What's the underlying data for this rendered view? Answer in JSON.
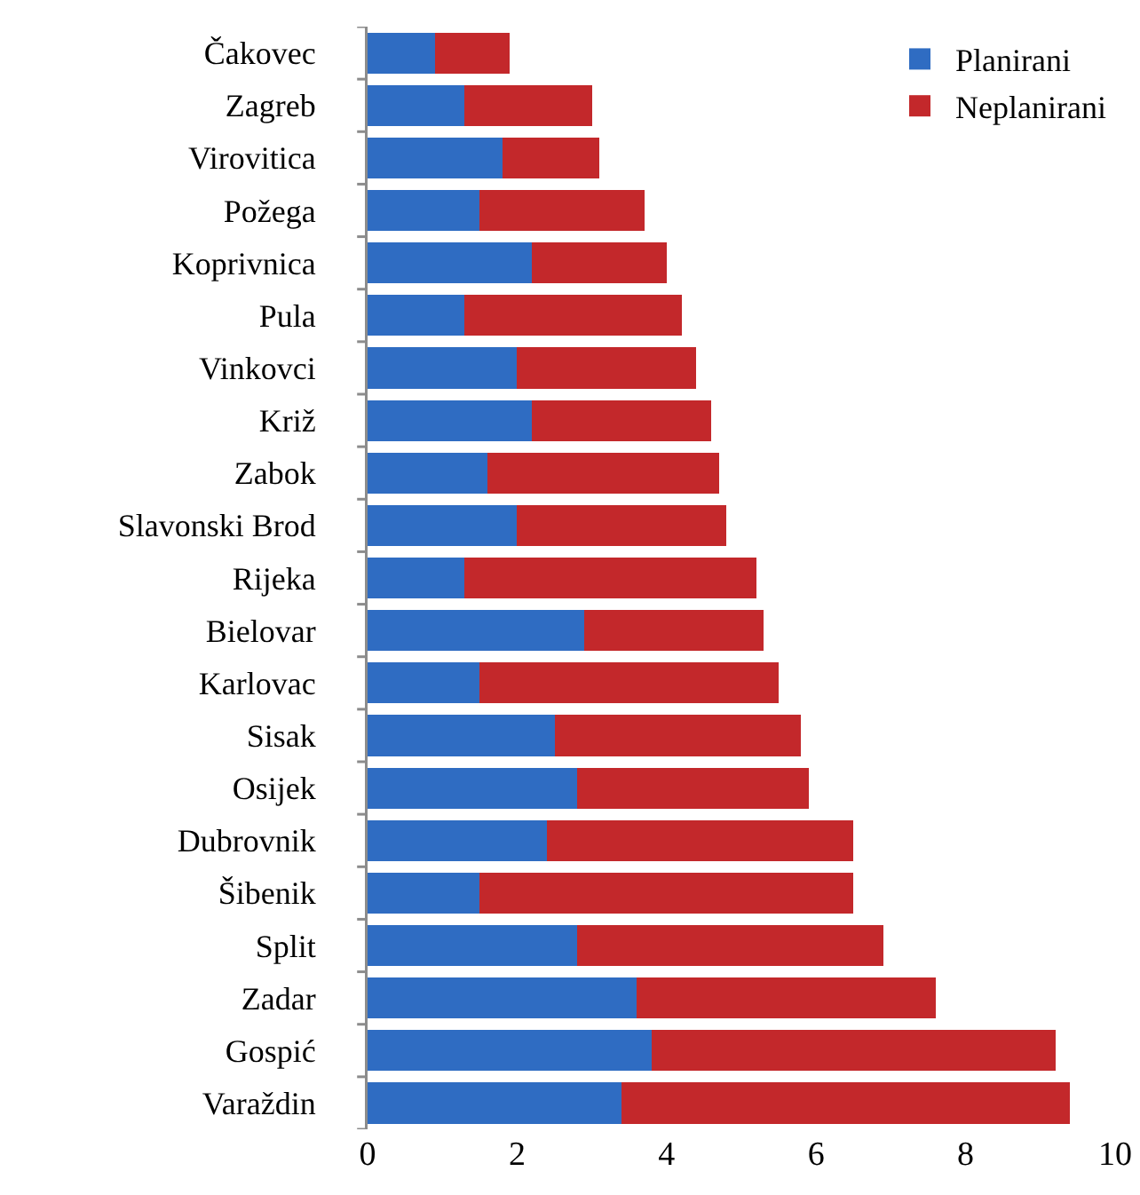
{
  "chart_data": {
    "type": "bar",
    "orientation": "horizontal",
    "stacked": true,
    "categories": [
      "Čakovec",
      "Zagreb",
      "Virovitica",
      "Požega",
      "Koprivnica",
      "Pula",
      "Vinkovci",
      "Križ",
      "Zabok",
      "Slavonski Brod",
      "Rijeka",
      "Bielovar",
      "Karlovac",
      "Sisak",
      "Osijek",
      "Dubrovnik",
      "Šibenik",
      "Split",
      "Zadar",
      "Gospić",
      "Varaždin"
    ],
    "series": [
      {
        "name": "Planirani",
        "color": "#2f6cc2",
        "values": [
          0.9,
          1.3,
          1.8,
          1.5,
          2.2,
          1.3,
          2.0,
          2.2,
          1.6,
          2.0,
          1.3,
          2.9,
          1.5,
          2.5,
          2.8,
          2.4,
          1.5,
          2.8,
          3.6,
          3.8,
          3.4
        ]
      },
      {
        "name": "Neplanirani",
        "color": "#c3282b",
        "values": [
          1.0,
          1.7,
          1.3,
          2.2,
          1.8,
          2.9,
          2.4,
          2.4,
          3.1,
          2.8,
          3.9,
          2.4,
          4.0,
          3.3,
          3.1,
          4.1,
          5.0,
          4.1,
          4.0,
          5.4,
          6.0
        ]
      }
    ],
    "xlim": [
      0,
      10
    ],
    "xticks": [
      0,
      2,
      4,
      6,
      8,
      10
    ],
    "legend": "top right"
  }
}
